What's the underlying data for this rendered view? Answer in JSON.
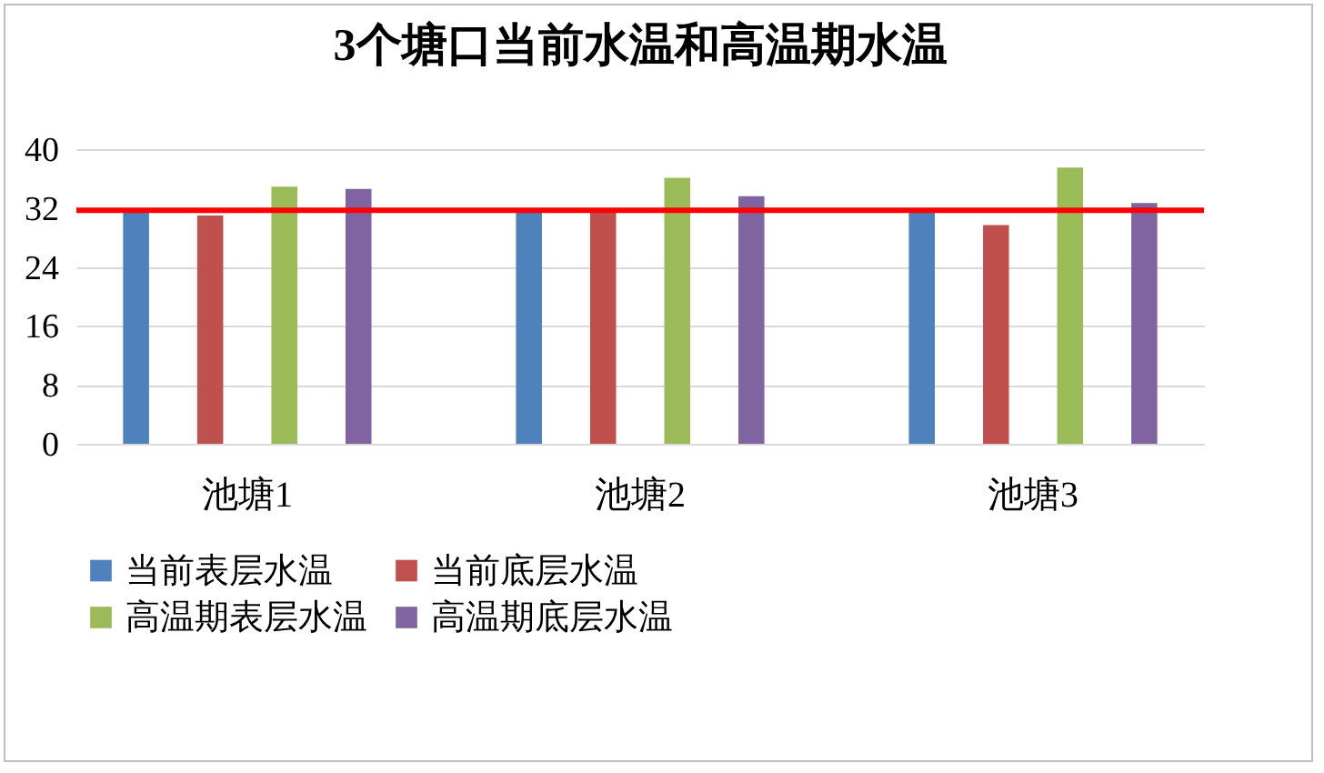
{
  "chart_data": {
    "type": "bar",
    "title": "3个塘口当前水温和高温期水温",
    "categories": [
      "池塘1",
      "池塘2",
      "池塘3"
    ],
    "series": [
      {
        "name": "当前表层水温",
        "color": "#4f81bd",
        "values": [
          31.5,
          31.5,
          31.5
        ]
      },
      {
        "name": "当前底层水温",
        "color": "#c0504d",
        "values": [
          31.0,
          31.5,
          29.7
        ]
      },
      {
        "name": "高温期表层水温",
        "color": "#9bbb59",
        "values": [
          34.9,
          36.1,
          37.5
        ]
      },
      {
        "name": "高温期底层水温",
        "color": "#8064a2",
        "values": [
          34.6,
          33.6,
          32.7
        ]
      }
    ],
    "ylim": [
      0,
      40
    ],
    "yticks": [
      0,
      8,
      16,
      24,
      32,
      40
    ],
    "grid": "y",
    "legend": "bottom",
    "ref_lines": [
      {
        "axis": "y",
        "value": 31.7,
        "color": "#ff0000"
      }
    ]
  }
}
